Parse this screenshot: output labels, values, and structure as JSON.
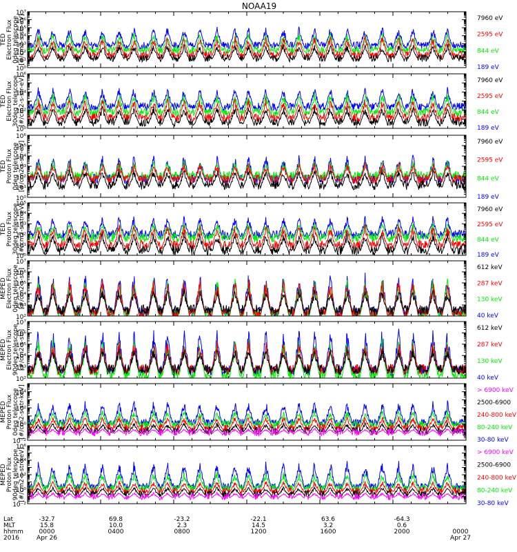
{
  "title": "NOAA19",
  "colors": {
    "black": "#000000",
    "red": "#ff0000",
    "green": "#00ee00",
    "blue": "#0000ff",
    "magenta": "#ff00ff"
  },
  "chart_data": [
    {
      "type": "line",
      "instrument": "TED",
      "ylabel_lines": [
        "TED",
        "Electron Flux",
        "0deg telescope",
        "[#/cm2-s-str-eV]"
      ],
      "log_scale": true,
      "ylim_exp": [
        0,
        7
      ],
      "yticks": [
        "10⁰",
        "10¹",
        "10²",
        "10³",
        "10⁴",
        "10⁵",
        "10⁶",
        "10⁷"
      ],
      "legend": [
        {
          "label": "7960 eV",
          "color": "#000000"
        },
        {
          "label": "2595 eV",
          "color": "#ff0000"
        },
        {
          "label": "844 eV",
          "color": "#00ee00"
        },
        {
          "label": "189 eV",
          "color": "#0000ff"
        }
      ],
      "series_base_exp": [
        1.0,
        1.4,
        2.0,
        2.6
      ],
      "series_peak_exp": [
        3.0,
        4.0,
        4.5,
        5.2
      ]
    },
    {
      "type": "line",
      "instrument": "TED",
      "ylabel_lines": [
        "TED",
        "Electron Flux",
        "30deg telescope",
        "[#/cm2-s-str-eV]"
      ],
      "log_scale": true,
      "ylim_exp": [
        0,
        6
      ],
      "yticks": [
        "10⁰",
        "",
        "10²",
        "",
        "10⁴",
        "",
        "10⁶"
      ],
      "legend": [
        {
          "label": "7960 eV",
          "color": "#000000"
        },
        {
          "label": "2595 eV",
          "color": "#ff0000"
        },
        {
          "label": "844 eV",
          "color": "#00ee00"
        },
        {
          "label": "189 eV",
          "color": "#0000ff"
        }
      ],
      "series_base_exp": [
        0.5,
        1.0,
        1.6,
        2.2
      ],
      "series_peak_exp": [
        2.5,
        3.4,
        4.0,
        4.6
      ]
    },
    {
      "type": "line",
      "instrument": "TED",
      "ylabel_lines": [
        "TED",
        "Proton Flux",
        "0deg telescope",
        "[#/cm2-s-str-eV]"
      ],
      "log_scale": true,
      "ylim_exp": [
        0,
        6
      ],
      "yticks": [
        "10⁰",
        "10¹",
        "10²",
        "10³",
        "10⁴",
        "10⁵",
        "10⁶"
      ],
      "legend": [
        {
          "label": "7960 eV",
          "color": "#000000"
        },
        {
          "label": "2595 eV",
          "color": "#ff0000"
        },
        {
          "label": "844 eV",
          "color": "#00ee00"
        },
        {
          "label": "189 eV",
          "color": "#0000ff"
        }
      ],
      "series_base_exp": [
        1.0,
        1.6,
        1.9,
        1.6
      ],
      "series_peak_exp": [
        2.8,
        3.4,
        3.6,
        4.2
      ]
    },
    {
      "type": "line",
      "instrument": "TED",
      "ylabel_lines": [
        "TED",
        "Proton Flux",
        "30deg telescope",
        "[#/cm2-s-str-eV]"
      ],
      "log_scale": true,
      "ylim_exp": [
        0,
        5
      ],
      "yticks": [
        "10⁰",
        "10¹",
        "10²",
        "10³",
        "10⁴",
        "10⁵"
      ],
      "legend": [
        {
          "label": "7960 eV",
          "color": "#000000"
        },
        {
          "label": "2595 eV",
          "color": "#ff0000"
        },
        {
          "label": "844 eV",
          "color": "#00ee00"
        },
        {
          "label": "189 eV",
          "color": "#0000ff"
        }
      ],
      "series_base_exp": [
        0.3,
        0.8,
        1.5,
        1.8
      ],
      "series_peak_exp": [
        2.2,
        3.0,
        3.2,
        3.8
      ]
    },
    {
      "type": "line",
      "instrument": "MEPED",
      "ylabel_lines": [
        "MEPED",
        "Electron Flux",
        "0deg telescope",
        "[#/cm2-s-str]"
      ],
      "log_scale": true,
      "ylim_exp": [
        2,
        7
      ],
      "yticks": [
        "10²",
        "10³",
        "10⁴",
        "10⁵",
        "10⁶",
        "10⁷"
      ],
      "legend": [
        {
          "label": "612 keV",
          "color": "#000000"
        },
        {
          "label": "287 keV",
          "color": "#ff0000"
        },
        {
          "label": "130 keV",
          "color": "#00ee00"
        },
        {
          "label": "40 keV",
          "color": "#0000ff"
        }
      ],
      "series_base_exp": [
        2.4,
        2.1,
        2.0,
        2.2
      ],
      "series_peak_exp": [
        4.5,
        5.5,
        5.6,
        6.0
      ]
    },
    {
      "type": "line",
      "instrument": "MEPED",
      "ylabel_lines": [
        "MEPED",
        "Electron Flux",
        "90deg telescope",
        "[#/cm2-s-str]"
      ],
      "log_scale": true,
      "ylim_exp": [
        2,
        7
      ],
      "yticks": [
        "10²",
        "10³",
        "10⁴",
        "10⁵",
        "10⁶",
        "10⁷"
      ],
      "legend": [
        {
          "label": "612 keV",
          "color": "#000000"
        },
        {
          "label": "287 keV",
          "color": "#ff0000"
        },
        {
          "label": "130 keV",
          "color": "#00ee00"
        },
        {
          "label": "40 keV",
          "color": "#0000ff"
        }
      ],
      "series_base_exp": [
        2.6,
        2.6,
        2.1,
        2.5
      ],
      "series_peak_exp": [
        4.8,
        5.4,
        5.6,
        6.5
      ]
    },
    {
      "type": "line",
      "instrument": "MEPED",
      "ylabel_lines": [
        "MEPED",
        "Proton Flux",
        "0deg telescope",
        "[#/cm2-s-str-keV]"
      ],
      "log_scale": true,
      "ylim_exp": [
        -2,
        5
      ],
      "yticks": [
        "10⁻²",
        "",
        "10⁰",
        "",
        "10²",
        "",
        "10⁴",
        ""
      ],
      "legend": [
        {
          "label": "> 6900 keV",
          "color": "#ff00ff"
        },
        {
          "label": "2500-6900",
          "color": "#000000"
        },
        {
          "label": "240-800 keV",
          "color": "#ff0000"
        },
        {
          "label": "80-240 keV",
          "color": "#00ee00"
        },
        {
          "label": "30-80 keV",
          "color": "#0000ff"
        }
      ],
      "series_base_exp": [
        -1.2,
        -1.0,
        -0.6,
        -0.2,
        0.0
      ],
      "series_peak_exp": [
        -0.5,
        0.2,
        1.0,
        1.8,
        3.0
      ]
    },
    {
      "type": "line",
      "instrument": "MEPED",
      "ylabel_lines": [
        "MEPED",
        "Proton Flux",
        "90deg telescope",
        "[#/cm2-s-str-keV]"
      ],
      "log_scale": true,
      "ylim_exp": [
        -2,
        6
      ],
      "yticks": [
        "10⁻²",
        "",
        "10⁰",
        "",
        "10²",
        "",
        "10⁴",
        "",
        "10⁶"
      ],
      "legend": [
        {
          "label": "> 6900 keV",
          "color": "#ff00ff"
        },
        {
          "label": "2500-6900",
          "color": "#000000"
        },
        {
          "label": "240-800 keV",
          "color": "#ff0000"
        },
        {
          "label": "80-240 keV",
          "color": "#00ee00"
        },
        {
          "label": "30-80 keV",
          "color": "#0000ff"
        }
      ],
      "series_base_exp": [
        -1.2,
        -0.8,
        -0.4,
        0.0,
        0.2
      ],
      "series_peak_exp": [
        -0.4,
        0.4,
        1.2,
        2.5,
        4.0
      ]
    }
  ],
  "x_axis": {
    "row_labels": [
      "Lat",
      "MLT",
      "hhmm",
      "2016"
    ],
    "ticks": [
      {
        "lat": "-32.7",
        "mlt": "15.8",
        "hhmm": "0000",
        "date": "Apr 26"
      },
      {
        "lat": "69.8",
        "mlt": "10.0",
        "hhmm": "0400",
        "date": ""
      },
      {
        "lat": "-23.2",
        "mlt": "2.3",
        "hhmm": "0800",
        "date": ""
      },
      {
        "lat": "-22.1",
        "mlt": "14.5",
        "hhmm": "1200",
        "date": ""
      },
      {
        "lat": "63.6",
        "mlt": "3.2",
        "hhmm": "1600",
        "date": ""
      },
      {
        "lat": "-64.3",
        "mlt": "0.6",
        "hhmm": "2000",
        "date": ""
      },
      {
        "lat": "",
        "mlt": "",
        "hhmm": "0000",
        "date": "Apr 27"
      }
    ]
  }
}
